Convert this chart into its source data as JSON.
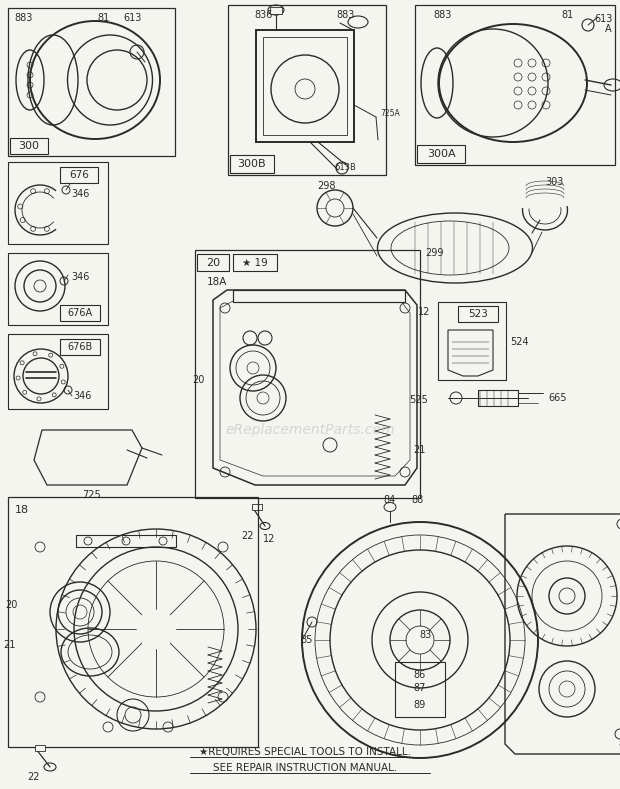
{
  "bg_color": "#f5f5f0",
  "diagram_color": "#2a2a2a",
  "watermark": "eReplacementParts.com",
  "footer_line1": "★REQUIRES SPECIAL TOOLS TO INSTALL.",
  "footer_line2": "SEE REPAIR INSTRUCTION MANUAL.",
  "fig_w": 6.2,
  "fig_h": 7.89,
  "dpi": 100,
  "lw_main": 1.0,
  "lw_thin": 0.6,
  "lw_thick": 1.4,
  "fs_label": 7.0,
  "fs_partnum": 7.0,
  "fs_boxlabel": 7.5,
  "fs_watermark": 10,
  "fs_footer": 7.5
}
